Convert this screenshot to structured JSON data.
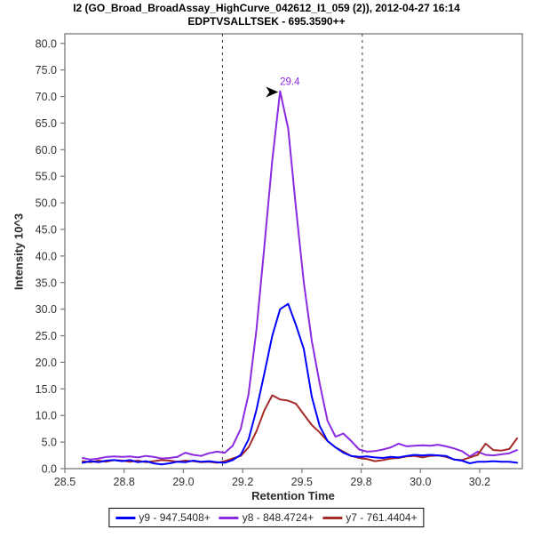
{
  "chart_data": {
    "type": "line",
    "title": "I2 (GO_Broad_BroadAssay_HighCurve_042612_I1_059 (2)), 2012-04-27 16:14",
    "subtitle": "EDPTVSALLTSEK - 695.3590++",
    "xlabel": "Retention Time",
    "ylabel": "Intensity 10^3",
    "xlim": [
      28.5,
      30.43
    ],
    "ylim": [
      0,
      81.8
    ],
    "grid": false,
    "legend_position": "bottom-center",
    "x_ticks": {
      "values": [
        28.5,
        28.75,
        29.0,
        29.25,
        29.5,
        29.75,
        30.0,
        30.25
      ],
      "labels": [
        "28.5",
        "28.8",
        "29.0",
        "29.2",
        "29.5",
        "29.8",
        "30.0",
        "30.2"
      ]
    },
    "y_ticks": {
      "values": [
        0,
        5,
        10,
        15,
        20,
        25,
        30,
        35,
        40,
        45,
        50,
        55,
        60,
        65,
        70,
        75,
        80
      ],
      "labels": [
        "0.0",
        "5.0",
        "10.0",
        "15.0",
        "20.0",
        "25.0",
        "30.0",
        "35.0",
        "40.0",
        "45.0",
        "50.0",
        "55.0",
        "60.0",
        "65.0",
        "70.0",
        "75.0",
        "80.0"
      ]
    },
    "peak_boundaries": [
      29.165,
      29.755
    ],
    "annotation": {
      "text": "29.4",
      "x": 29.408,
      "y": 71,
      "color": "#8a2be2",
      "arrow_color": "#000000"
    },
    "x": [
      28.575,
      28.608,
      28.642,
      28.675,
      28.708,
      28.742,
      28.775,
      28.808,
      28.842,
      28.875,
      28.908,
      28.942,
      28.975,
      29.008,
      29.042,
      29.075,
      29.108,
      29.142,
      29.175,
      29.208,
      29.242,
      29.275,
      29.308,
      29.342,
      29.375,
      29.408,
      29.442,
      29.475,
      29.508,
      29.542,
      29.575,
      29.608,
      29.642,
      29.675,
      29.708,
      29.742,
      29.775,
      29.808,
      29.842,
      29.875,
      29.908,
      29.942,
      29.975,
      30.008,
      30.042,
      30.075,
      30.108,
      30.142,
      30.175,
      30.208,
      30.242,
      30.275,
      30.308,
      30.342,
      30.375,
      30.408
    ],
    "series": [
      {
        "name": "y9 - 947.5408+",
        "color": "#0000ff",
        "values": [
          1.1,
          1.4,
          1.2,
          1.5,
          1.6,
          1.4,
          1.6,
          1.2,
          1.4,
          1.0,
          0.8,
          1.0,
          1.3,
          1.2,
          1.5,
          1.3,
          1.4,
          1.2,
          1.1,
          1.6,
          2.6,
          5.5,
          11.0,
          18.0,
          25.0,
          30.0,
          31.0,
          27.0,
          22.5,
          13.5,
          8.0,
          5.2,
          4.0,
          3.0,
          2.4,
          2.2,
          2.3,
          2.1,
          2.0,
          2.2,
          2.1,
          2.4,
          2.6,
          2.5,
          2.6,
          2.5,
          2.4,
          1.7,
          1.5,
          1.0,
          1.3,
          1.3,
          1.4,
          1.3,
          1.3,
          1.1
        ]
      },
      {
        "name": "y8 - 848.4724+",
        "color": "#8a2be2",
        "values": [
          2.0,
          1.7,
          1.9,
          2.2,
          2.3,
          2.2,
          2.3,
          2.1,
          2.4,
          2.2,
          1.9,
          2.0,
          2.2,
          3.0,
          2.6,
          2.4,
          2.9,
          3.2,
          3.0,
          4.3,
          7.5,
          14.0,
          26.0,
          42.0,
          58.0,
          71.0,
          64.0,
          49.0,
          35.0,
          24.0,
          16.0,
          9.0,
          6.0,
          6.6,
          5.2,
          3.6,
          3.2,
          3.3,
          3.6,
          4.0,
          4.7,
          4.2,
          4.3,
          4.4,
          4.3,
          4.5,
          4.2,
          3.8,
          3.3,
          2.3,
          3.2,
          2.6,
          2.5,
          2.7,
          2.9,
          3.5
        ]
      },
      {
        "name": "y7 - 761.4404+",
        "color": "#a52a2a",
        "values": [
          1.4,
          1.2,
          1.5,
          1.3,
          1.6,
          1.5,
          1.3,
          1.5,
          1.2,
          1.4,
          1.6,
          1.5,
          1.3,
          1.5,
          1.4,
          1.2,
          1.3,
          1.1,
          1.4,
          1.9,
          2.4,
          4.0,
          7.0,
          11.0,
          13.8,
          13.0,
          12.8,
          12.2,
          10.2,
          8.2,
          6.8,
          5.2,
          4.0,
          3.2,
          2.4,
          2.0,
          1.8,
          1.4,
          1.6,
          1.9,
          2.0,
          2.3,
          2.4,
          2.1,
          2.4,
          2.5,
          2.2,
          1.7,
          1.6,
          2.1,
          2.6,
          4.7,
          3.5,
          3.4,
          3.7,
          5.7
        ]
      }
    ],
    "colors": {
      "axis": "#7a7a7a",
      "tick_text": "#333333",
      "boundary_line": "#3c3c3c",
      "background": "#ffffff"
    }
  }
}
